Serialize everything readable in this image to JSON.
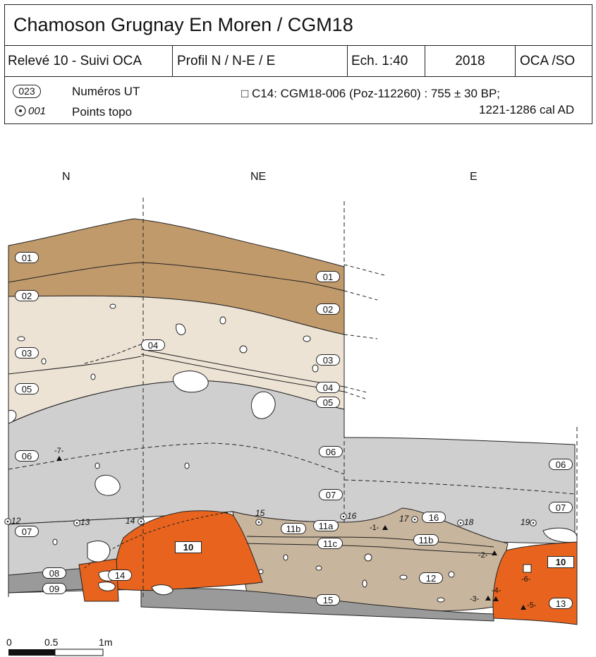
{
  "header": {
    "title": "Chamoson Grugnay En Moren / CGM18",
    "cells": [
      "Relevé 10 - Suivi OCA",
      "Profil N / N-E / E",
      "Ech. 1:40",
      "2018",
      "OCA /SO"
    ],
    "legend": {
      "ut_sample": "023",
      "ut_label": "Numéros UT",
      "topo_sample": "001",
      "topo_label": "Points topo",
      "c14_line1": "□ C14: CGM18-006 (Poz-112260) : 755 ± 30 BP;",
      "c14_line2": "1221-1286 cal AD"
    }
  },
  "orientation": {
    "n": "N",
    "ne": "NE",
    "e": "E"
  },
  "layer_colors": {
    "brown": "#c19a6b",
    "cream": "#ede3d5",
    "grey": "#cfcfcf",
    "dark_grey": "#9a9a9a",
    "tan": "#c8b59d",
    "orange": "#e8641e"
  },
  "ut_labels": [
    "01",
    "01",
    "02",
    "02",
    "03",
    "03",
    "04",
    "04",
    "05",
    "05",
    "06",
    "06",
    "06",
    "07",
    "07",
    "07",
    "08",
    "09",
    "10",
    "10",
    "11a",
    "11b",
    "11c",
    "11b",
    "12",
    "13",
    "14",
    "15",
    "16"
  ],
  "topo_points": [
    "12",
    "13",
    "14",
    "15",
    "16",
    "17",
    "18",
    "19"
  ],
  "finds": [
    "-1-",
    "-2-",
    "-3-",
    "-4-",
    "-5-",
    "-6-",
    "-7-"
  ],
  "scale": {
    "labels": [
      "0",
      "0.5",
      "1m"
    ]
  }
}
